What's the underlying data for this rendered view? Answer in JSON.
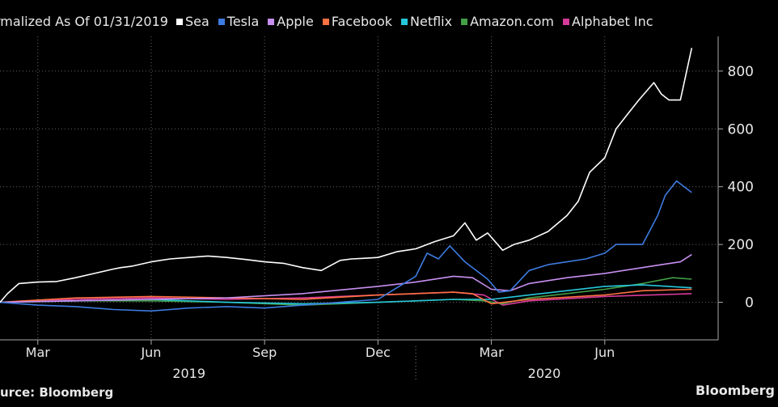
{
  "chart_data": {
    "type": "line",
    "title": "rmalized As Of 01/31/2019",
    "source": "urce: Bloomberg",
    "brand": "Bloomberg",
    "legend_position": "top",
    "grid": true,
    "grid_style": "dotted",
    "y_axis_side": "right",
    "ylim": [
      -130,
      920
    ],
    "yticks": [
      0,
      200,
      400,
      600,
      800
    ],
    "xlim": [
      0,
      19
    ],
    "xticks": [
      {
        "label": "Mar",
        "x": 1
      },
      {
        "label": "Jun",
        "x": 4
      },
      {
        "label": "Sep",
        "x": 7
      },
      {
        "label": "Dec",
        "x": 10
      },
      {
        "label": "Mar",
        "x": 13
      },
      {
        "label": "Jun",
        "x": 16
      }
    ],
    "years": [
      {
        "label": "2019",
        "x": 5
      },
      {
        "label": "2020",
        "x": 14.4
      }
    ],
    "year_divider_x": 11,
    "series": [
      {
        "name": "Sea",
        "color": "#ffffff",
        "x": [
          0,
          0.2,
          0.5,
          1,
          1.5,
          2,
          2.5,
          3,
          3.2,
          3.5,
          4,
          4.5,
          5,
          5.5,
          6,
          6.5,
          7,
          7.5,
          8,
          8.5,
          9,
          9.3,
          9.6,
          10,
          10.5,
          11,
          11.5,
          12,
          12.3,
          12.6,
          12.9,
          13.3,
          13.6,
          14,
          14.5,
          15,
          15.3,
          15.6,
          16,
          16.3,
          16.6,
          16.9,
          17.1,
          17.3,
          17.5,
          17.7,
          18,
          18.3
        ],
        "y": [
          0,
          30,
          65,
          70,
          72,
          85,
          100,
          115,
          120,
          125,
          140,
          150,
          155,
          160,
          155,
          148,
          140,
          135,
          120,
          110,
          145,
          150,
          152,
          155,
          175,
          185,
          210,
          230,
          275,
          215,
          240,
          180,
          200,
          215,
          245,
          300,
          350,
          450,
          500,
          600,
          650,
          700,
          730,
          760,
          720,
          700,
          700,
          880
        ]
      },
      {
        "name": "Tesla",
        "color": "#3d7be0",
        "x": [
          0,
          1,
          2,
          3,
          4,
          5,
          6,
          7,
          8,
          9,
          10,
          10.5,
          11,
          11.3,
          11.6,
          11.9,
          12.3,
          12.6,
          12.9,
          13.2,
          13.5,
          14,
          14.5,
          15,
          15.5,
          16,
          16.3,
          16.6,
          17,
          17.2,
          17.4,
          17.6,
          17.9,
          18.3
        ],
        "y": [
          0,
          -10,
          -15,
          -25,
          -30,
          -20,
          -15,
          -20,
          -10,
          0,
          10,
          50,
          90,
          170,
          150,
          195,
          140,
          110,
          80,
          35,
          40,
          110,
          130,
          140,
          150,
          170,
          200,
          200,
          200,
          250,
          300,
          370,
          420,
          380
        ]
      },
      {
        "name": "Apple",
        "color": "#c78ff0",
        "x": [
          0,
          2,
          4,
          6,
          8,
          10,
          11,
          12,
          12.5,
          13,
          13.5,
          14,
          15,
          16,
          17,
          17.5,
          18,
          18.3
        ],
        "y": [
          0,
          5,
          10,
          15,
          30,
          55,
          70,
          90,
          85,
          45,
          40,
          65,
          85,
          100,
          120,
          130,
          140,
          165
        ]
      },
      {
        "name": "Facebook",
        "color": "#ff7043",
        "x": [
          0,
          2,
          4,
          6,
          8,
          10,
          12,
          12.5,
          13,
          14,
          16,
          17,
          18.3
        ],
        "y": [
          0,
          15,
          20,
          15,
          10,
          25,
          35,
          30,
          -5,
          10,
          25,
          40,
          45
        ]
      },
      {
        "name": "Netflix",
        "color": "#26c6da",
        "x": [
          0,
          2,
          4,
          6,
          8,
          10,
          12,
          13,
          14,
          16,
          17,
          18.3
        ],
        "y": [
          0,
          5,
          10,
          0,
          -5,
          0,
          10,
          10,
          25,
          55,
          60,
          50
        ]
      },
      {
        "name": "Amazon.com",
        "color": "#43a047",
        "x": [
          0,
          2,
          4,
          6,
          8,
          10,
          12,
          12.8,
          13.3,
          14,
          16,
          17,
          17.8,
          18.3
        ],
        "y": [
          0,
          5,
          5,
          0,
          -10,
          0,
          10,
          5,
          -5,
          15,
          45,
          65,
          85,
          80
        ]
      },
      {
        "name": "Alphabet Inc",
        "color": "#d63a9a",
        "x": [
          0,
          2,
          4,
          6,
          8,
          10,
          12,
          12.8,
          13.3,
          14,
          16,
          18.3
        ],
        "y": [
          0,
          10,
          15,
          10,
          15,
          25,
          35,
          25,
          -10,
          5,
          20,
          30
        ]
      }
    ]
  }
}
